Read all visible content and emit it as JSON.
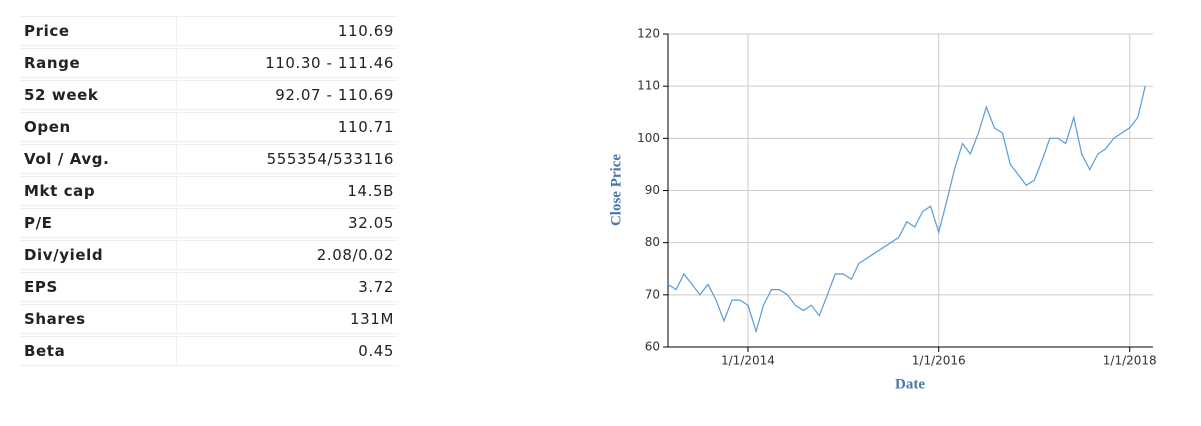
{
  "table": {
    "rows": [
      [
        "Price",
        "110.69"
      ],
      [
        "Range",
        "110.30 - 111.46"
      ],
      [
        "52 week",
        "92.07 - 110.69"
      ],
      [
        "Open",
        "110.71"
      ],
      [
        "Vol / Avg.",
        "555354/533116"
      ],
      [
        "Mkt cap",
        "14.5B"
      ],
      [
        "P/E",
        "32.05"
      ],
      [
        "Div/yield",
        "2.08/0.02"
      ],
      [
        "EPS",
        "3.72"
      ],
      [
        "Shares",
        "131M"
      ],
      [
        "Beta",
        "0.45"
      ]
    ]
  },
  "chart_data": {
    "type": "line",
    "x_label": "Date",
    "y_label": "Close Price",
    "color": "#5b9bd5",
    "grid": true,
    "xlim": [
      "3/1/2013",
      "3/31/2018"
    ],
    "xticks": [
      "1/1/2014",
      "1/1/2016",
      "1/1/2018"
    ],
    "ylim": [
      60,
      120
    ],
    "yticks": [
      60,
      70,
      80,
      90,
      100,
      110,
      120
    ],
    "x": [
      "3/1/2013",
      "4/1/2013",
      "5/1/2013",
      "6/1/2013",
      "7/1/2013",
      "8/1/2013",
      "9/1/2013",
      "10/1/2013",
      "11/1/2013",
      "12/1/2013",
      "1/1/2014",
      "2/1/2014",
      "3/1/2014",
      "4/1/2014",
      "5/1/2014",
      "6/1/2014",
      "7/1/2014",
      "8/1/2014",
      "9/1/2014",
      "10/1/2014",
      "11/1/2014",
      "12/1/2014",
      "1/1/2015",
      "2/1/2015",
      "3/1/2015",
      "4/1/2015",
      "5/1/2015",
      "6/1/2015",
      "7/1/2015",
      "8/1/2015",
      "9/1/2015",
      "10/1/2015",
      "11/1/2015",
      "12/1/2015",
      "1/1/2016",
      "2/1/2016",
      "3/1/2016",
      "4/1/2016",
      "5/1/2016",
      "6/1/2016",
      "7/1/2016",
      "8/1/2016",
      "9/1/2016",
      "10/1/2016",
      "11/1/2016",
      "12/1/2016",
      "1/1/2017",
      "2/1/2017",
      "3/1/2017",
      "4/1/2017",
      "5/1/2017",
      "6/1/2017",
      "7/1/2017",
      "8/1/2017",
      "9/1/2017",
      "10/1/2017",
      "11/1/2017",
      "12/1/2017",
      "1/1/2018",
      "2/1/2018",
      "3/1/2018"
    ],
    "values": [
      72,
      71,
      74,
      72,
      70,
      72,
      69,
      65,
      69,
      69,
      68,
      63,
      68,
      71,
      71,
      70,
      68,
      67,
      68,
      66,
      70,
      74,
      74,
      73,
      76,
      77,
      78,
      79,
      80,
      81,
      84,
      83,
      86,
      87,
      82,
      88,
      94,
      99,
      97,
      101,
      106,
      102,
      101,
      95,
      93,
      91,
      92,
      96,
      100,
      100,
      99,
      104,
      97,
      94,
      97,
      98,
      100,
      101,
      102,
      104,
      110
    ]
  }
}
